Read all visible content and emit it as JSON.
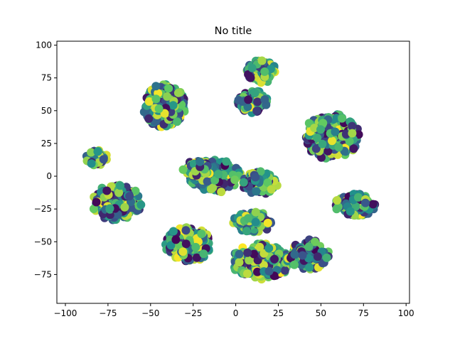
{
  "chart_data": {
    "type": "scatter",
    "title": "No title",
    "xlabel": "",
    "ylabel": "",
    "xlim": [
      -105,
      102
    ],
    "ylim": [
      -97,
      103
    ],
    "xticks": [
      -100,
      -75,
      -50,
      -25,
      0,
      25,
      50,
      75,
      100
    ],
    "yticks": [
      -75,
      -50,
      -25,
      0,
      25,
      50,
      75,
      100
    ],
    "grid": false,
    "colormap": [
      "#440154",
      "#3b528b",
      "#21918c",
      "#5ec962",
      "#fde725"
    ],
    "clusters": [
      {
        "center": [
          -42,
          54
        ],
        "spread": [
          13,
          17
        ],
        "n": 340
      },
      {
        "center": [
          15,
          80
        ],
        "spread": [
          9,
          9
        ],
        "n": 150
      },
      {
        "center": [
          10,
          57
        ],
        "spread": [
          9,
          9
        ],
        "n": 120
      },
      {
        "center": [
          56,
          30
        ],
        "spread": [
          17,
          18
        ],
        "n": 340
      },
      {
        "center": [
          -82,
          14
        ],
        "spread": [
          7,
          6
        ],
        "n": 50
      },
      {
        "center": [
          -70,
          -20
        ],
        "spread": [
          15,
          14
        ],
        "n": 280
      },
      {
        "center": [
          -12,
          0
        ],
        "spread": [
          16,
          13
        ],
        "n": 220
      },
      {
        "center": [
          14,
          -5
        ],
        "spread": [
          11,
          9
        ],
        "n": 160
      },
      {
        "center": [
          -28,
          -52
        ],
        "spread": [
          14,
          14
        ],
        "n": 250
      },
      {
        "center": [
          10,
          -35
        ],
        "spread": [
          12,
          8
        ],
        "n": 120
      },
      {
        "center": [
          15,
          -65
        ],
        "spread": [
          18,
          14
        ],
        "n": 310
      },
      {
        "center": [
          43,
          -60
        ],
        "spread": [
          12,
          12
        ],
        "n": 150
      },
      {
        "center": [
          70,
          -22
        ],
        "spread": [
          12,
          9
        ],
        "n": 170
      },
      {
        "center": [
          -22,
          6
        ],
        "spread": [
          10,
          6
        ],
        "n": 70
      }
    ]
  }
}
